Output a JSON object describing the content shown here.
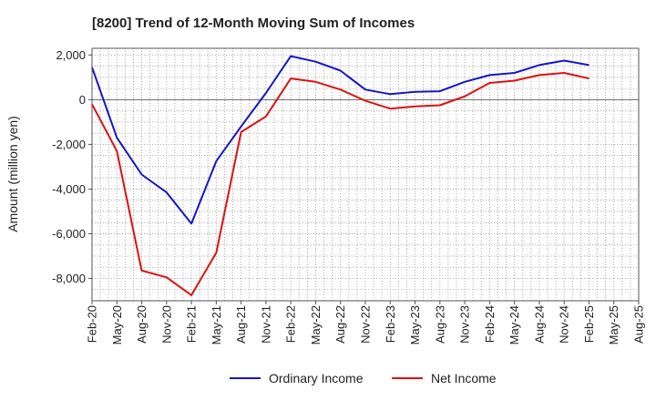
{
  "chart_data": {
    "type": "line",
    "title": "[8200]  Trend of 12-Month Moving Sum of Incomes",
    "xlabel": "",
    "ylabel": "Amount (million yen)",
    "ylim": [
      -9000,
      2300
    ],
    "yticks": [
      2000,
      0,
      -2000,
      -4000,
      -6000,
      -8000
    ],
    "ytick_labels": [
      "2,000",
      "0",
      "-2,000",
      "-4,000",
      "-6,000",
      "-8,000"
    ],
    "categories": [
      "Feb-20",
      "May-20",
      "Aug-20",
      "Nov-20",
      "Feb-21",
      "May-21",
      "Aug-21",
      "Nov-21",
      "Feb-22",
      "May-22",
      "Aug-22",
      "Nov-22",
      "Feb-23",
      "May-23",
      "Aug-23",
      "Nov-23",
      "Feb-24",
      "May-24",
      "Aug-24",
      "Nov-24",
      "Feb-25",
      "May-25"
    ],
    "x_tick_labels": [
      "Feb-20",
      "May-20",
      "Aug-20",
      "Nov-20",
      "Feb-21",
      "May-21",
      "Aug-21",
      "Nov-21",
      "Feb-22",
      "May-22",
      "Aug-22",
      "Nov-22",
      "Feb-23",
      "May-23",
      "Aug-23",
      "Nov-23",
      "Feb-24",
      "May-24",
      "Aug-24",
      "Nov-24",
      "Feb-25",
      "May-25",
      "Aug-25"
    ],
    "grid": true,
    "legend_position": "bottom-center",
    "series": [
      {
        "name": "Ordinary Income",
        "color": "#1515cc",
        "values": [
          1450,
          -1700,
          -3350,
          -4150,
          -5550,
          -2750,
          -1200,
          300,
          1950,
          1700,
          1300,
          450,
          250,
          350,
          380,
          800,
          1100,
          1200,
          1550,
          1750,
          1550,
          null
        ]
      },
      {
        "name": "Net Income",
        "color": "#dd1111",
        "values": [
          -200,
          -2300,
          -7650,
          -7950,
          -8750,
          -6850,
          -1450,
          -750,
          950,
          800,
          450,
          -50,
          -400,
          -300,
          -250,
          150,
          750,
          850,
          1100,
          1200,
          950,
          null
        ]
      }
    ]
  }
}
